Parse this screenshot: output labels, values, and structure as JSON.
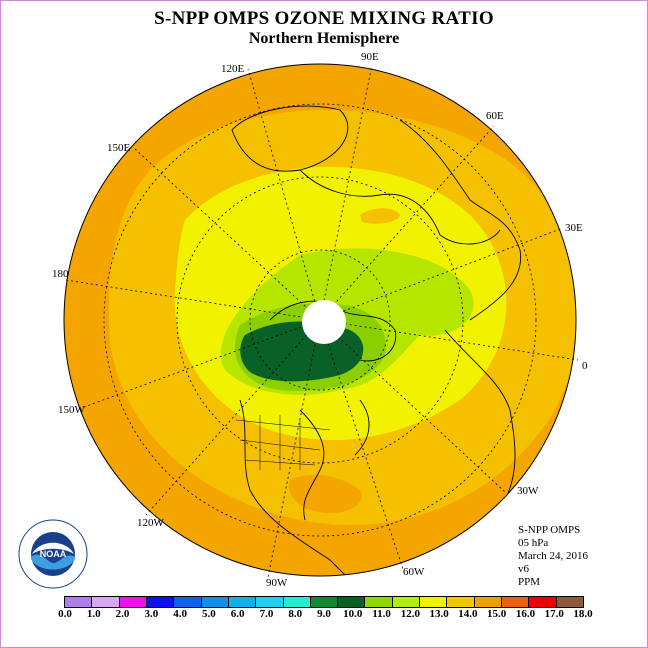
{
  "title": "S-NPP OMPS OZONE MIXING RATIO",
  "subtitle": "Northern Hemisphere",
  "longitude_labels": {
    "e90": "90E",
    "e120": "120E",
    "e60": "60E",
    "e150": "150E",
    "e30": "30E",
    "d180": "180",
    "d0": "0",
    "w150": "150W",
    "w30": "30W",
    "w120": "120W",
    "w60": "60W",
    "w90": "90W"
  },
  "info": {
    "instrument": "S-NPP OMPS",
    "level": "05 hPa",
    "date": "March 24, 2016",
    "version": "v6",
    "units": "PPM"
  },
  "logo_text": "NOAA",
  "colorbar": {
    "ticks": [
      "0.0",
      "1.0",
      "2.0",
      "3.0",
      "4.0",
      "5.0",
      "6.0",
      "7.0",
      "8.0",
      "9.0",
      "10.0",
      "11.0",
      "12.0",
      "13.0",
      "14.0",
      "15.0",
      "16.0",
      "17.0",
      "18.0"
    ],
    "colors": [
      "#b07ee6",
      "#d8a8f0",
      "#ee10ee",
      "#1010ee",
      "#1060ee",
      "#1090ee",
      "#10b0ee",
      "#20d0ee",
      "#20f0d0",
      "#108a30",
      "#0a5f22",
      "#90d800",
      "#b0ee10",
      "#f0f000",
      "#f0c800",
      "#f0a000",
      "#f06010",
      "#ee0000",
      "#8b5a3c"
    ]
  },
  "map_colors": {
    "outer": "#f5a500",
    "orange_light": "#f5c000",
    "yellow": "#f2f200",
    "light_green": "#b6e600",
    "mid_green": "#8ccf00",
    "dark_green": "#0a6128",
    "pole_cap": "#ffffff"
  }
}
